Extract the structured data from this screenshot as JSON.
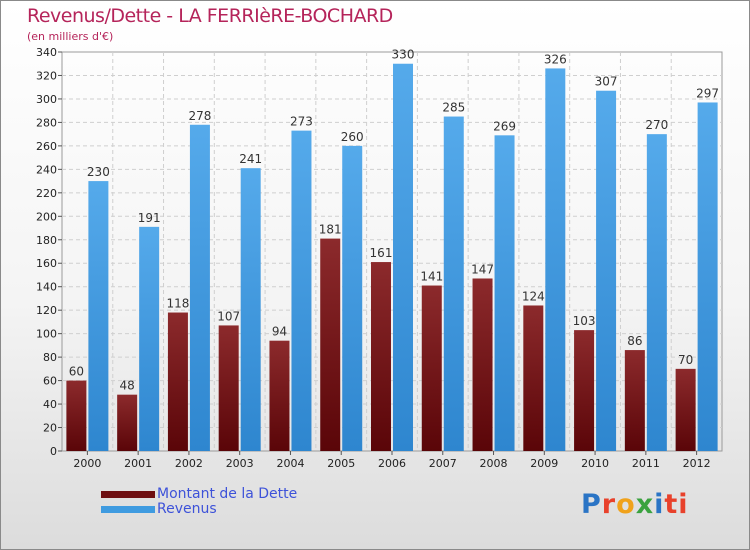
{
  "title": "Revenus/Dette - LA FERRIèRE-BOCHARD",
  "subtitle": "(en milliers d'€)",
  "brand": {
    "parts": [
      "P",
      "r",
      "o",
      "x",
      "i",
      "ti"
    ]
  },
  "colors": {
    "debt": "#6e0f12",
    "revenue": "#3f9be0",
    "title": "#b5245a"
  },
  "chart_data": {
    "type": "bar",
    "title": "Revenus/Dette - LA FERRIèRE-BOCHARD",
    "ylabel": "(en milliers d'€)",
    "xlabel": "",
    "ylim": [
      0,
      340
    ],
    "ytick_step": 20,
    "grid": true,
    "legend": "bottom-left",
    "categories": [
      "2000",
      "2001",
      "2002",
      "2003",
      "2004",
      "2005",
      "2006",
      "2007",
      "2008",
      "2009",
      "2010",
      "2011",
      "2012"
    ],
    "series": [
      {
        "name": "Montant de la Dette",
        "values": [
          60,
          48,
          118,
          107,
          94,
          181,
          161,
          141,
          147,
          124,
          103,
          86,
          70
        ]
      },
      {
        "name": "Revenus",
        "values": [
          230,
          191,
          278,
          241,
          273,
          260,
          330,
          285,
          269,
          326,
          307,
          270,
          297
        ]
      }
    ]
  }
}
